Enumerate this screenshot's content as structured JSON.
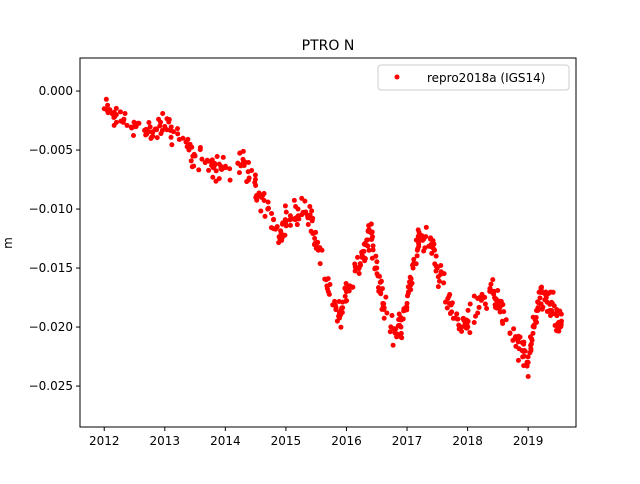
{
  "chart_data": {
    "type": "scatter",
    "title": "PTRO N",
    "xlabel": "",
    "ylabel": "m",
    "xlim": [
      2011.6,
      2019.79
    ],
    "ylim": [
      -0.02847,
      0.0028
    ],
    "xticks": [
      2012,
      2013,
      2014,
      2015,
      2016,
      2017,
      2018,
      2019
    ],
    "xtick_labels": [
      "2012",
      "2013",
      "2014",
      "2015",
      "2016",
      "2017",
      "2018",
      "2019"
    ],
    "yticks": [
      0.0,
      -0.005,
      -0.01,
      -0.015,
      -0.02,
      -0.025
    ],
    "ytick_labels": [
      "0.000",
      "−0.005",
      "−0.010",
      "−0.015",
      "−0.020",
      "−0.025"
    ],
    "legend": {
      "placement": "top-right",
      "entries": [
        "repro2018a (IGS14)"
      ]
    },
    "series": [
      {
        "name": "repro2018a (IGS14)",
        "color": "#ff0000",
        "marker": "circle",
        "scatter_spread_m": 0.0015,
        "x": [
          2012.0,
          2012.2,
          2012.5,
          2012.8,
          2013.0,
          2013.3,
          2013.5,
          2013.8,
          2014.0,
          2014.3,
          2014.5,
          2014.7,
          2014.9,
          2015.0,
          2015.2,
          2015.4,
          2015.5,
          2015.7,
          2015.9,
          2016.0,
          2016.2,
          2016.3,
          2016.4,
          2016.5,
          2016.6,
          2016.8,
          2016.9,
          2017.0,
          2017.1,
          2017.2,
          2017.4,
          2017.5,
          2017.7,
          2017.9,
          2018.0,
          2018.2,
          2018.4,
          2018.5,
          2018.7,
          2018.9,
          2019.0,
          2019.1,
          2019.2,
          2019.3,
          2019.4,
          2019.5,
          2019.55
        ],
        "y": [
          -0.0015,
          -0.002,
          -0.003,
          -0.0035,
          -0.003,
          -0.004,
          -0.0055,
          -0.0065,
          -0.0065,
          -0.006,
          -0.008,
          -0.01,
          -0.0125,
          -0.011,
          -0.01,
          -0.0105,
          -0.013,
          -0.017,
          -0.019,
          -0.017,
          -0.015,
          -0.013,
          -0.012,
          -0.015,
          -0.018,
          -0.0205,
          -0.02,
          -0.018,
          -0.015,
          -0.012,
          -0.013,
          -0.015,
          -0.018,
          -0.02,
          -0.0195,
          -0.0175,
          -0.017,
          -0.018,
          -0.0205,
          -0.022,
          -0.023,
          -0.02,
          -0.017,
          -0.0175,
          -0.018,
          -0.02,
          -0.0195
        ]
      }
    ]
  }
}
